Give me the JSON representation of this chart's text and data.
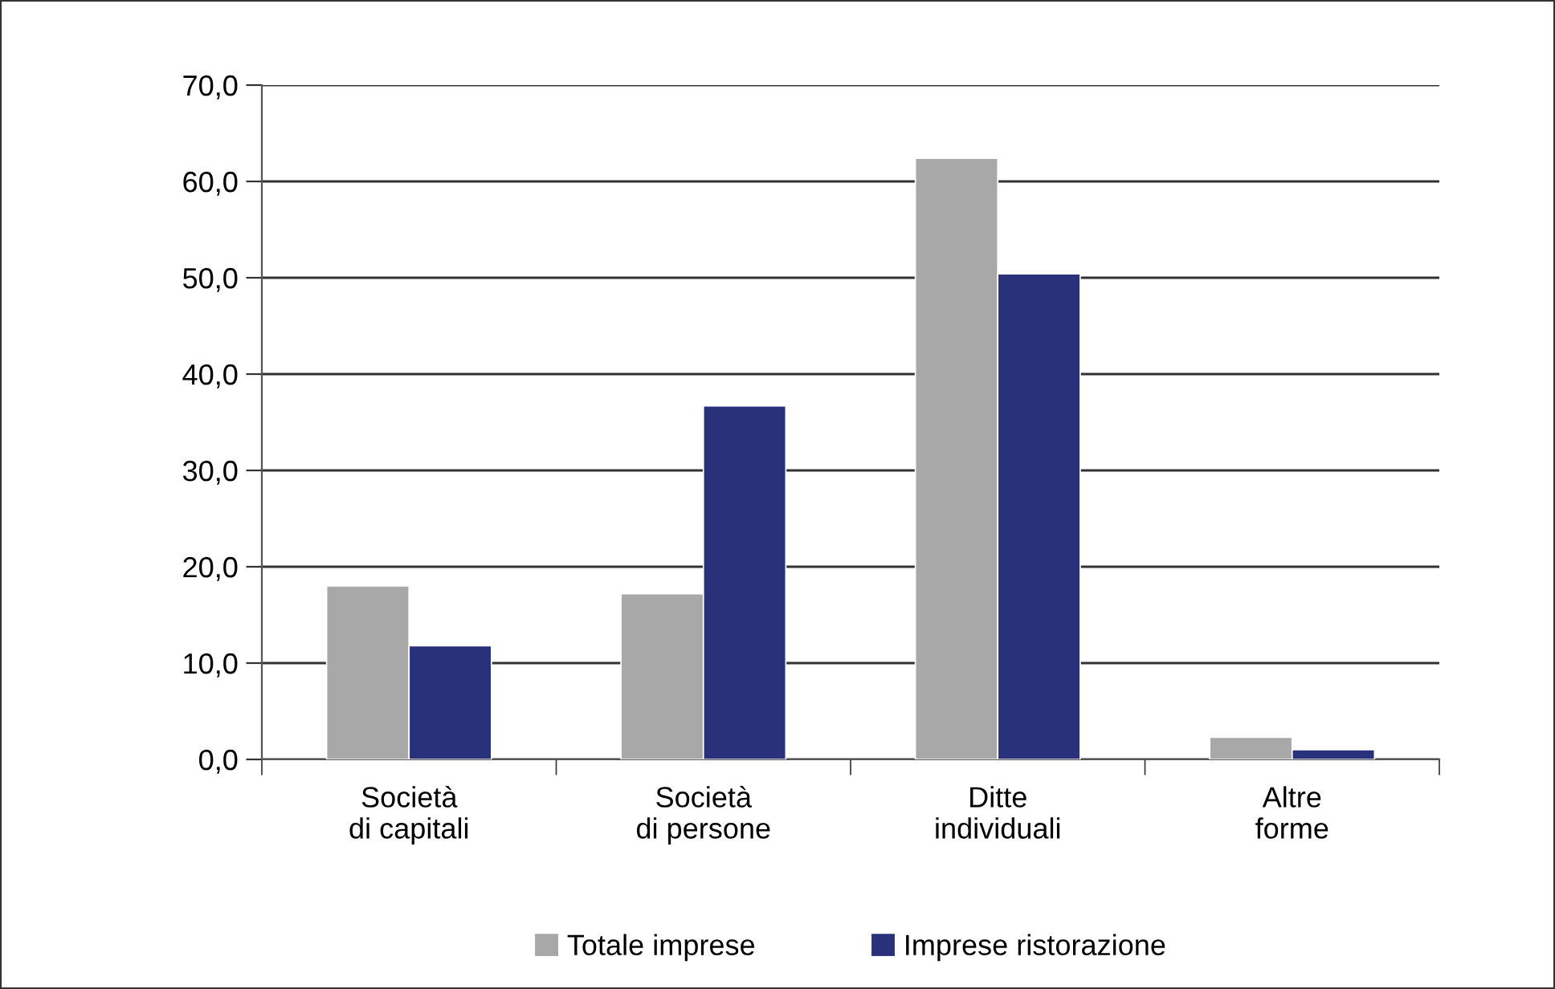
{
  "chart_data": {
    "type": "bar",
    "categories": [
      "Società\ndi capitali",
      "Società\ndi persone",
      "Ditte\nindividuali",
      "Altre\nforme"
    ],
    "series": [
      {
        "name": "Totale imprese",
        "color": "#a8a8a8",
        "values": [
          18.0,
          17.2,
          62.4,
          2.3
        ]
      },
      {
        "name": "Imprese ristorazione",
        "color": "#29317a",
        "values": [
          11.8,
          36.7,
          50.4,
          1.0
        ]
      }
    ],
    "ylim": [
      0,
      70
    ],
    "yticks": [
      {
        "value": 0,
        "label": "0,0"
      },
      {
        "value": 10,
        "label": "10,0"
      },
      {
        "value": 20,
        "label": "20,0"
      },
      {
        "value": 30,
        "label": "30,0"
      },
      {
        "value": 40,
        "label": "40,0"
      },
      {
        "value": 50,
        "label": "50,0"
      },
      {
        "value": 60,
        "label": "60,0"
      },
      {
        "value": 70,
        "label": "70,0"
      }
    ],
    "grid": "y",
    "legend": "bottom"
  }
}
